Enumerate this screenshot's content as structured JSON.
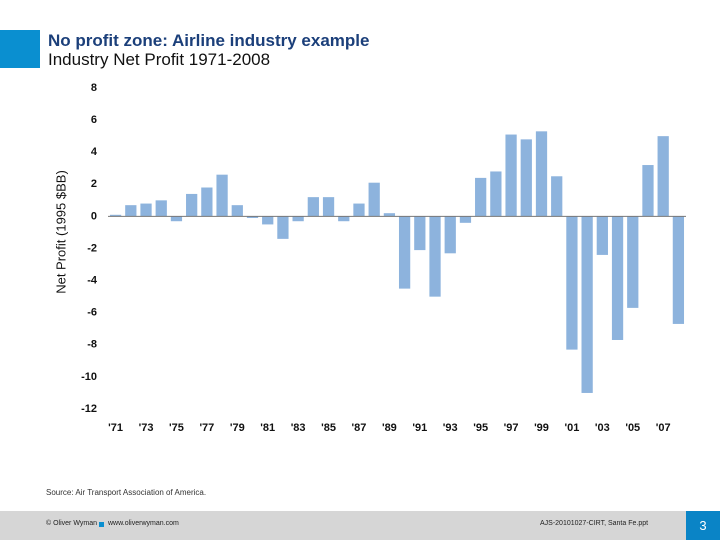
{
  "chart_data": {
    "type": "bar",
    "title": "No profit zone: Airline industry example",
    "subtitle": "Industry Net Profit 1971-2008",
    "y_label": "Net Profit (1995 $BB)",
    "source": "Source:  Air Transport Association of America.",
    "categories": [
      "'71",
      null,
      "'73",
      null,
      "'75",
      null,
      "'77",
      null,
      "'79",
      null,
      "'81",
      null,
      "'83",
      null,
      "'85",
      null,
      "'87",
      null,
      "'89",
      null,
      "'91",
      null,
      "'93",
      null,
      "'95",
      null,
      "'97",
      null,
      "'99",
      null,
      "'01",
      null,
      "'03",
      null,
      "'05",
      null,
      "'07",
      null
    ],
    "values": [
      0.1,
      0.7,
      0.8,
      1.0,
      -0.3,
      1.4,
      1.8,
      2.6,
      0.7,
      -0.1,
      -0.5,
      -1.4,
      -0.3,
      1.2,
      1.2,
      -0.3,
      0.8,
      2.1,
      0.2,
      -4.5,
      -2.1,
      -5.0,
      -2.3,
      -0.4,
      2.4,
      2.8,
      5.1,
      4.8,
      5.3,
      2.5,
      -8.3,
      -11.0,
      -2.4,
      -7.7,
      -5.7,
      3.2,
      5.0,
      -6.7
    ],
    "color": "#8db3dd",
    "ylim": [
      -12,
      8
    ],
    "yticks": [
      8,
      6,
      4,
      2,
      0,
      -2,
      -4,
      -6,
      -8,
      -10,
      -12
    ],
    "grid": false
  },
  "footer": {
    "company": "© Oliver Wyman",
    "website": "www.oliverwyman.com",
    "file": "AJS-20101027-CIRT, Santa Fe.ppt",
    "page": "3"
  }
}
